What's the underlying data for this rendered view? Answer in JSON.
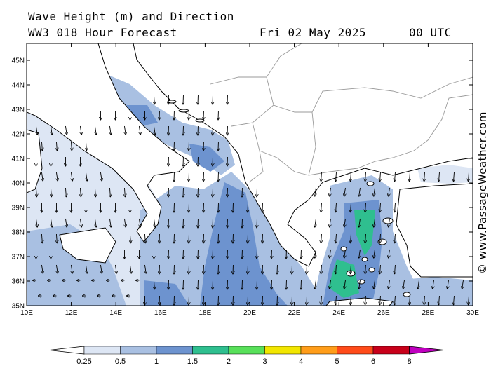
{
  "header": {
    "title_line1": "Wave Height (m) and Direction",
    "title_line2": "WW3 018 Hour Forecast",
    "date": "Fri 02 May 2025",
    "time": "00 UTC"
  },
  "credit": "© www.PassageWeather.com",
  "map": {
    "lat_labels": [
      "45N",
      "44N",
      "43N",
      "42N",
      "41N",
      "40N",
      "39N",
      "38N",
      "37N",
      "36N",
      "35N"
    ],
    "lon_labels": [
      "10E",
      "12E",
      "14E",
      "16E",
      "18E",
      "20E",
      "22E",
      "24E",
      "26E",
      "28E",
      "30E"
    ],
    "land_color": "#ffffff",
    "border_color": "#9a9a9a"
  },
  "legend": {
    "thresholds": [
      "0.25",
      "0.5",
      "1",
      "1.5",
      "2",
      "3",
      "4",
      "5",
      "6",
      "8"
    ],
    "colors": [
      "#dde6f4",
      "#a9c0e2",
      "#6d93cf",
      "#2fbf8f",
      "#58e05a",
      "#f2e600",
      "#ff9d1a",
      "#ff4b1a",
      "#c8001a",
      "#c000c0"
    ]
  }
}
